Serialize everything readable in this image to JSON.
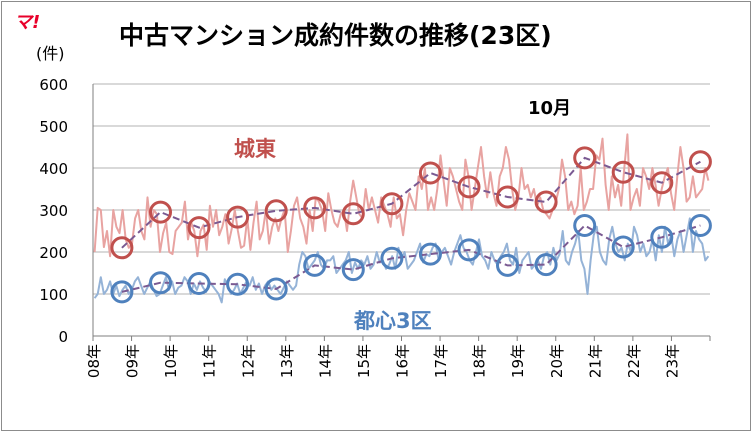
{
  "chart_data": {
    "type": "line",
    "title": "中古マンション成約件数の推移(23区)",
    "ylabel": "(件)",
    "ylim": [
      0,
      600
    ],
    "yticks": [
      0,
      100,
      200,
      300,
      400,
      500,
      600
    ],
    "categories": [
      "08年",
      "09年",
      "10年",
      "11年",
      "12年",
      "13年",
      "14年",
      "15年",
      "16年",
      "17年",
      "18年",
      "19年",
      "20年",
      "21年",
      "22年",
      "23年"
    ],
    "annotation": "10月",
    "grid": true,
    "logo_text": "マ!",
    "colors": {
      "joto_monthly": "#e8a3a1",
      "joto_oct": "#c0504d",
      "toshin_monthly": "#95b3d7",
      "toshin_oct": "#4f81bd",
      "dashed_line": "#7a5a92"
    },
    "series": [
      {
        "name": "城東",
        "label_color": "#c0504d",
        "monthly": [
          200,
          305,
          300,
          212,
          250,
          190,
          300,
          260,
          245,
          300,
          230,
          210,
          220,
          280,
          300,
          250,
          230,
          330,
          260,
          300,
          290,
          200,
          245,
          270,
          200,
          195,
          250,
          260,
          270,
          320,
          230,
          270,
          250,
          190,
          250,
          265,
          205,
          310,
          260,
          300,
          240,
          260,
          290,
          220,
          255,
          300,
          250,
          210,
          215,
          280,
          205,
          270,
          320,
          230,
          250,
          300,
          220,
          260,
          280,
          250,
          280,
          300,
          200,
          250,
          310,
          330,
          280,
          260,
          220,
          300,
          250,
          330,
          320,
          300,
          250,
          340,
          300,
          270,
          260,
          290,
          300,
          250,
          320,
          370,
          330,
          290,
          280,
          350,
          300,
          330,
          300,
          270,
          330,
          310,
          290,
          260,
          330,
          280,
          290,
          240,
          300,
          340,
          320,
          300,
          380,
          350,
          400,
          300,
          330,
          300,
          350,
          430,
          370,
          310,
          400,
          380,
          350,
          320,
          300,
          420,
          380,
          300,
          350,
          400,
          450,
          380,
          330,
          390,
          340,
          310,
          380,
          400,
          450,
          420,
          350,
          300,
          330,
          400,
          350,
          360,
          330,
          350,
          310,
          330,
          300,
          290,
          280,
          300,
          320,
          350,
          420,
          380,
          300,
          320,
          290,
          310,
          400,
          300,
          320,
          350,
          350,
          430,
          420,
          470,
          360,
          300,
          380,
          330,
          360,
          310,
          400,
          480,
          300,
          330,
          350,
          310,
          400,
          380,
          350,
          400,
          360,
          310,
          350,
          380,
          400,
          340,
          300,
          380,
          450,
          400,
          320,
          330,
          380,
          330,
          340,
          350,
          400,
          370
        ],
        "october": [
          210,
          295,
          258,
          283,
          298,
          305,
          291,
          315,
          388,
          355,
          331,
          319,
          424,
          390,
          365,
          415
        ]
      },
      {
        "name": "都心3区",
        "label_color": "#4f81bd",
        "monthly": [
          90,
          100,
          140,
          100,
          110,
          130,
          100,
          120,
          95,
          110,
          120,
          100,
          110,
          130,
          140,
          120,
          100,
          115,
          130,
          110,
          95,
          100,
          120,
          140,
          110,
          130,
          100,
          115,
          120,
          140,
          130,
          100,
          125,
          110,
          130,
          115,
          105,
          130,
          120,
          110,
          100,
          80,
          135,
          120,
          100,
          110,
          125,
          100,
          115,
          130,
          120,
          140,
          110,
          125,
          100,
          120,
          130,
          110,
          120,
          110,
          100,
          115,
          130,
          120,
          110,
          120,
          170,
          200,
          190,
          160,
          170,
          180,
          200,
          170,
          160,
          180,
          180,
          190,
          150,
          160,
          170,
          180,
          200,
          150,
          175,
          160,
          180,
          170,
          190,
          160,
          170,
          200,
          175,
          180,
          160,
          170,
          190,
          160,
          210,
          180,
          200,
          160,
          170,
          180,
          200,
          220,
          175,
          195,
          190,
          210,
          220,
          180,
          200,
          210,
          190,
          170,
          200,
          220,
          240,
          210,
          200,
          180,
          170,
          200,
          230,
          190,
          180,
          160,
          200,
          180,
          170,
          190,
          200,
          220,
          180,
          170,
          210,
          150,
          180,
          190,
          200,
          160,
          170,
          180,
          160,
          190,
          200,
          170,
          210,
          180,
          195,
          250,
          180,
          170,
          200,
          220,
          250,
          180,
          160,
          100,
          180,
          240,
          260,
          200,
          180,
          170,
          230,
          260,
          220,
          200,
          210,
          180,
          220,
          200,
          260,
          240,
          200,
          220,
          190,
          200,
          230,
          180,
          240,
          200,
          260,
          220,
          240,
          190,
          230,
          250,
          200,
          240,
          280,
          200,
          250,
          230,
          220,
          180,
          190
        ],
        "october": [
          105,
          127,
          125,
          123,
          112,
          168,
          158,
          185,
          195,
          205,
          168,
          170,
          263,
          212,
          235,
          263
        ]
      }
    ]
  }
}
